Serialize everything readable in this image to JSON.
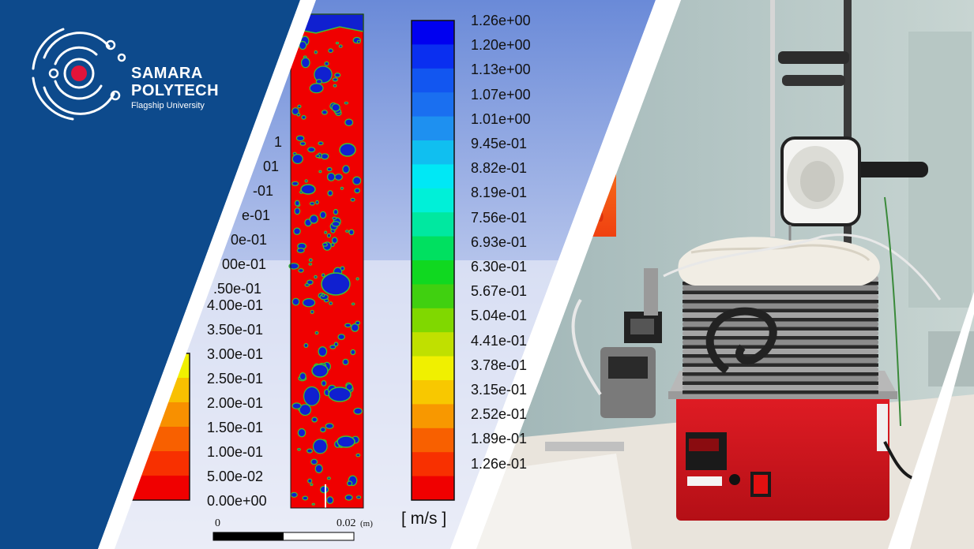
{
  "brand": {
    "name_line1": "SAMARA",
    "name_line2": "POLYTECH",
    "tagline": "Flagship University",
    "brand_color": "#0d4a8c",
    "accent_color": "#e3143a"
  },
  "left_scale": {
    "partial_labels": [
      "1",
      "01",
      "-01",
      "e-01",
      "0e-01",
      "00e-01",
      ".50e-01"
    ],
    "labels": [
      "4.00e-01",
      "3.50e-01",
      "3.00e-01",
      "2.50e-01",
      "2.00e-01",
      "1.50e-01",
      "1.00e-01",
      "5.00e-02",
      "0.00e+00"
    ]
  },
  "scale_bar": {
    "start_label": "0",
    "end_label": "0.02",
    "unit_label": "(m)"
  },
  "right_scale": {
    "labels": [
      "1.26e+00",
      "1.20e+00",
      "1.13e+00",
      "1.07e+00",
      "1.01e+00",
      "9.45e-01",
      "8.82e-01",
      "8.19e-01",
      "7.56e-01",
      "6.93e-01",
      "6.30e-01",
      "5.67e-01",
      "5.04e-01",
      "4.41e-01",
      "3.78e-01",
      "3.15e-01",
      "2.52e-01",
      "1.89e-01",
      "1.26e-01"
    ],
    "unit_label": "[ m/s ]"
  },
  "colors": {
    "right_colormap": [
      "#0000f0",
      "#0a2ff0",
      "#1256f0",
      "#1a6ff0",
      "#1e90f0",
      "#10bff0",
      "#00e8f5",
      "#00f0d8",
      "#00e8a0",
      "#00e060",
      "#10d820",
      "#40d010",
      "#80d800",
      "#c0e000",
      "#f0f000",
      "#f8c800",
      "#f89800",
      "#f86000",
      "#f83000",
      "#f00000"
    ],
    "left_colormap": [
      "#f0f000",
      "#f8c000",
      "#f89000",
      "#f86000",
      "#f83000",
      "#f00000"
    ],
    "simulation_bg": "#f00000",
    "bubble_color": "#1020d0",
    "bubble_outline": "#40c030"
  },
  "icons": {
    "logo": "concentric-orbit-logo",
    "thermocouple": "thermocouple-icon"
  }
}
